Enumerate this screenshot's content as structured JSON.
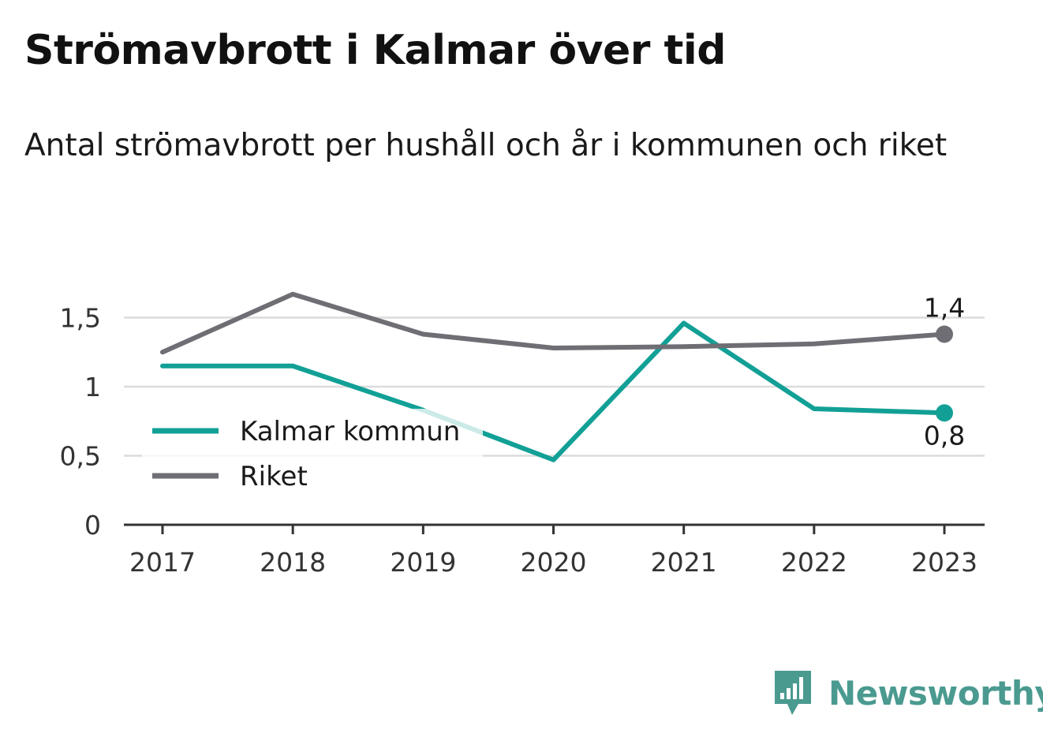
{
  "title": "Strömavbrott i Kalmar över tid",
  "subtitle": "Antal strömavbrott per hushåll och år i kommunen och riket",
  "brand": "Newsworthy",
  "chart_data": {
    "type": "line",
    "title": "Strömavbrott i Kalmar över tid",
    "subtitle": "Antal strömavbrott per hushåll och år i kommunen och riket",
    "x": [
      "2017",
      "2018",
      "2019",
      "2020",
      "2021",
      "2022",
      "2023"
    ],
    "y_ticks": [
      {
        "value": 0,
        "label": "0"
      },
      {
        "value": 0.5,
        "label": "0,5"
      },
      {
        "value": 1,
        "label": "1"
      },
      {
        "value": 1.5,
        "label": "1,5"
      }
    ],
    "ylim": [
      0,
      1.7
    ],
    "grid": true,
    "legend_position": "bottom-left",
    "series": [
      {
        "name": "Kalmar kommun",
        "color": "#12a096",
        "values": [
          1.15,
          1.15,
          0.83,
          0.47,
          1.46,
          0.84,
          0.81
        ],
        "end_label": "0,8",
        "end_label_position": "below"
      },
      {
        "name": "Riket",
        "color": "#6e6e74",
        "values": [
          1.25,
          1.67,
          1.38,
          1.28,
          1.29,
          1.31,
          1.38
        ],
        "end_label": "1,4",
        "end_label_position": "above"
      }
    ]
  }
}
